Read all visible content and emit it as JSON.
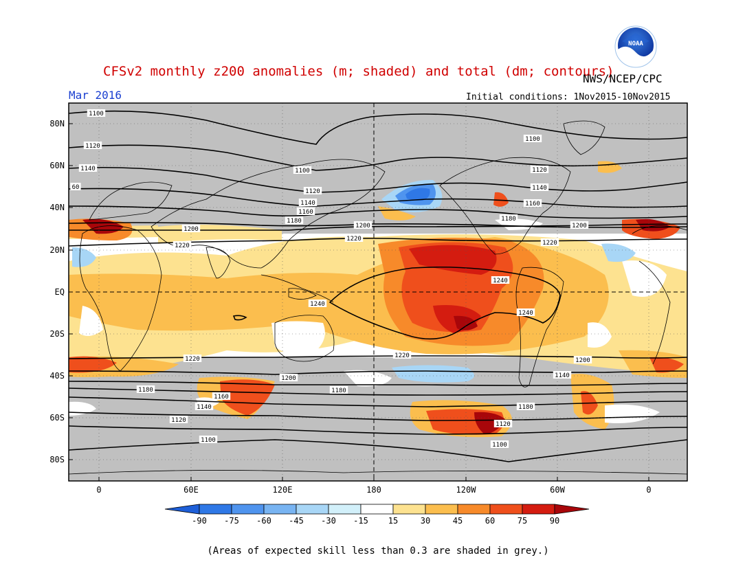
{
  "title": "CFSv2 monthly z200 anomalies (m; shaded) and total (dm; contours)",
  "month": "Mar 2016",
  "organization": "NWS/NCEP/CPC",
  "initial_conditions": "Initial conditions: 1Nov2015-10Nov2015",
  "logo_text": "NOAA",
  "footnote": "(Areas of expected skill less than 0.3 are shaded in grey.)",
  "lat_ticks": [
    "80N",
    "60N",
    "40N",
    "20N",
    "EQ",
    "20S",
    "40S",
    "60S",
    "80S"
  ],
  "lon_ticks": [
    "0",
    "60E",
    "120E",
    "180",
    "120W",
    "60W",
    "0"
  ],
  "contour_labels": [
    "1100",
    "1100",
    "1100",
    "1100",
    "1120",
    "1120",
    "1120",
    "1140",
    "1140",
    "1140",
    "1160",
    "1160",
    "1180",
    "1180",
    "1200",
    "1200",
    "1200",
    "1220",
    "1220",
    "1220",
    "1240",
    "1240",
    "1240",
    "60",
    "1200",
    "1180",
    "1180",
    "1180",
    "1160",
    "1140",
    "1120",
    "1220",
    "1220",
    "1200",
    "1140",
    "1120",
    "1100"
  ],
  "colorbar": {
    "labels": [
      "-90",
      "-75",
      "-60",
      "-45",
      "-30",
      "-15",
      "15",
      "30",
      "45",
      "60",
      "75",
      "90"
    ],
    "colors": [
      "#1e5fd8",
      "#2f78e6",
      "#4f94ee",
      "#78b4f2",
      "#a8d6f6",
      "#d2f0fa",
      "#ffffff",
      "#fde290",
      "#fbbe4e",
      "#f78a2a",
      "#ef4f1c",
      "#d41c10",
      "#a8060a"
    ]
  },
  "colors": {
    "grey_mask": "#c0c0c0",
    "title_red": "#d00000",
    "month_blue": "#1a3fd0"
  }
}
